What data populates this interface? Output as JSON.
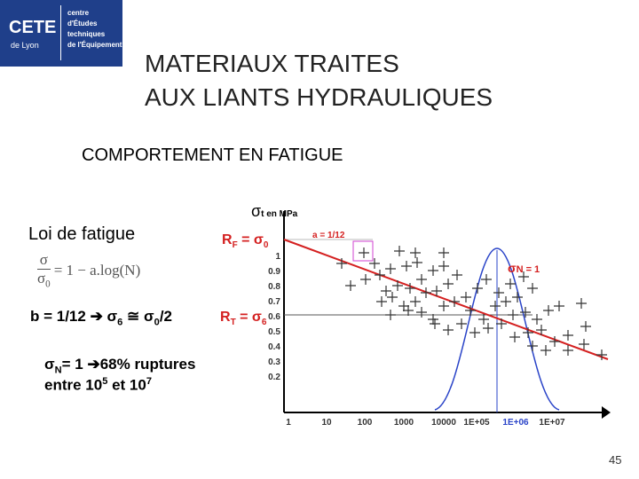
{
  "logo": {
    "name": "CETE",
    "place": "de Lyon",
    "lines": [
      "centre",
      "d'Études",
      "techniques",
      "de l'Équipement"
    ]
  },
  "title": [
    "MATERIAUX TRAITES",
    "AUX LIANTS HYDRAULIQUES"
  ],
  "subtitle": "COMPORTEMENT EN FATIGUE",
  "left": {
    "heading": "Loi de fatigue",
    "formula": {
      "numerator": "σ",
      "denominator": [
        "σ",
        "0"
      ],
      "rhs": "= 1 − a.log(N)"
    },
    "b_rule": [
      "b = 1/12 ➔ σ",
      "6",
      " ≅ σ",
      "0",
      "/2"
    ],
    "n_rule": [
      "σ",
      "N",
      "= 1 ➔68% ruptures"
    ],
    "range_rule": [
      "entre 10",
      "5",
      " et 10",
      "7"
    ]
  },
  "figure": {
    "y_label": [
      "σ",
      "t en MPa"
    ],
    "rf": [
      "R",
      "F",
      " = σ",
      "0"
    ],
    "rt": [
      "R",
      "T",
      " = σ",
      "6"
    ],
    "slope": "a = 1/12",
    "sigma_n": [
      "σ",
      "N = 1"
    ],
    "y_labels": [
      "1",
      "0.9",
      "0.8",
      "0.7",
      "0.6",
      "0.5",
      "0.4",
      "0.3",
      "0.2"
    ],
    "x_labels": [
      "1",
      "10",
      "100",
      "1000",
      "10000",
      "1E+05",
      "1E+06",
      "1E+07"
    ]
  },
  "page_number": 45
}
